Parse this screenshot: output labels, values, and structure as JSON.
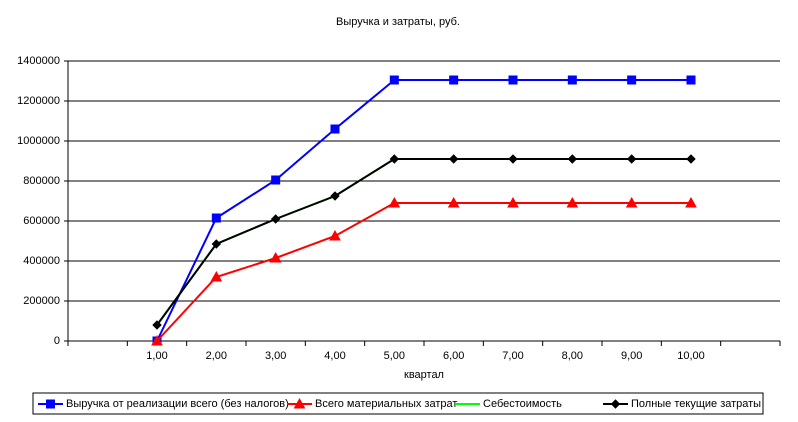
{
  "chart_data": {
    "type": "line",
    "title": "Выручка и затраты, руб.",
    "x_label": "квартал",
    "categories": [
      null,
      "1,00",
      "2,00",
      "3,00",
      "4,00",
      "5,00",
      "6,00",
      "7,00",
      "8,00",
      "9,00",
      "10,00",
      null
    ],
    "ylim": [
      0,
      1400000
    ],
    "yticks": [
      0,
      200000,
      400000,
      600000,
      800000,
      1000000,
      1200000,
      1400000
    ],
    "grid": true,
    "legend": "bottom",
    "series": [
      {
        "name": "Выручка от реализации всего (без налогов)",
        "color": "#0000ff",
        "marker": "square",
        "values": [
          null,
          0,
          615000,
          805000,
          1060000,
          1305000,
          1305000,
          1305000,
          1305000,
          1305000,
          1305000,
          null
        ]
      },
      {
        "name": "Всего материальных затрат",
        "color": "#ff0000",
        "marker": "triangle",
        "values": [
          null,
          0,
          320000,
          415000,
          525000,
          690000,
          690000,
          690000,
          690000,
          690000,
          690000,
          null
        ]
      },
      {
        "name": "Себестоимость",
        "color": "#00ff00",
        "marker": "none",
        "values": [
          null,
          80000,
          485000,
          610000,
          725000,
          910000,
          910000,
          910000,
          910000,
          910000,
          910000,
          null
        ]
      },
      {
        "name": "Полные текущие затраты",
        "color": "#000000",
        "marker": "diamond",
        "values": [
          null,
          80000,
          485000,
          610000,
          725000,
          910000,
          910000,
          910000,
          910000,
          910000,
          910000,
          null
        ]
      }
    ]
  }
}
